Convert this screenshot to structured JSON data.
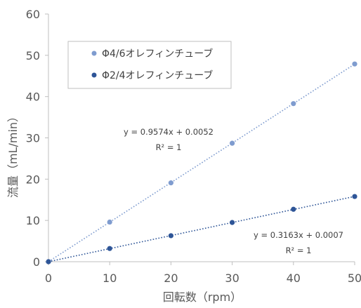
{
  "chart_data": {
    "type": "scatter",
    "title": "",
    "xlabel": "回転数（rpm）",
    "ylabel": "流量（mL/min）",
    "xlim": [
      0,
      50
    ],
    "ylim": [
      0,
      60
    ],
    "x_ticks": [
      "0",
      "10",
      "20",
      "30",
      "40",
      "50"
    ],
    "y_ticks": [
      "0",
      "10",
      "20",
      "30",
      "40",
      "50",
      "60"
    ],
    "grid": false,
    "legend_position": "top-left",
    "series": [
      {
        "name": "Φ4/6オレフィンチューブ",
        "color": "#7f9ccf",
        "x": [
          0,
          10,
          20,
          30,
          40,
          50
        ],
        "y": [
          0,
          9.6,
          19.1,
          28.7,
          38.3,
          47.9
        ],
        "trendline": {
          "slope": 0.9574,
          "intercept": 0.0052
        },
        "equation": "y = 0.9574x + 0.0052",
        "r2": "R² = 1"
      },
      {
        "name": "Φ2/4オレフィンチューブ",
        "color": "#2e5597",
        "x": [
          0,
          10,
          20,
          30,
          40,
          50
        ],
        "y": [
          0,
          3.2,
          6.3,
          9.5,
          12.7,
          15.8
        ],
        "trendline": {
          "slope": 0.3163,
          "intercept": 0.0007
        },
        "equation": "y = 0.3163x + 0.0007",
        "r2": "R² = 1"
      }
    ]
  }
}
